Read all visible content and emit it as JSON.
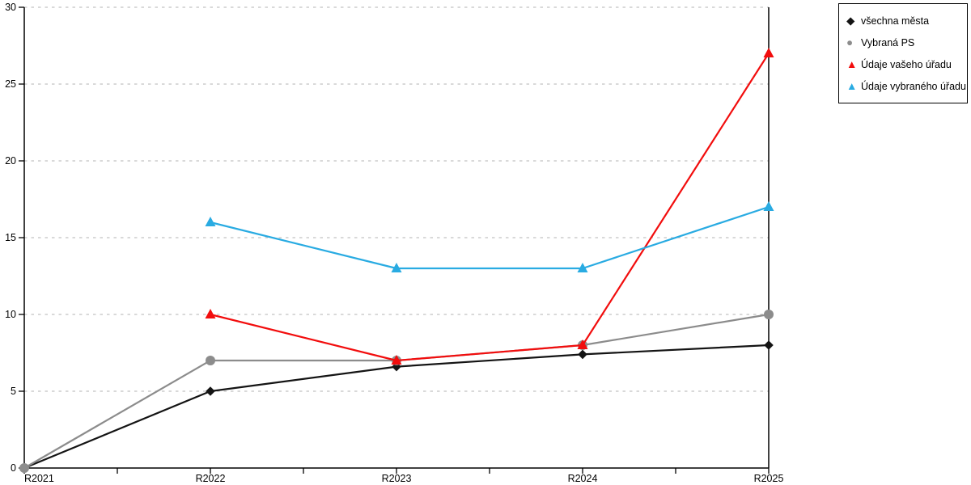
{
  "chart_data": {
    "type": "line",
    "title": "",
    "xlabel": "",
    "ylabel": "",
    "categories": [
      "R2021",
      "R2022",
      "R2023",
      "R2024",
      "R2025"
    ],
    "series": [
      {
        "name": "všechna města",
        "color": "#141414",
        "marker": "diamond",
        "values": [
          0,
          5,
          6.6,
          7.4,
          8
        ]
      },
      {
        "name": "Vybraná PS",
        "color": "#8c8c8c",
        "marker": "circle",
        "values": [
          0,
          7,
          7,
          8,
          10
        ]
      },
      {
        "name": "Údaje vašeho úřadu",
        "color": "#f20d0d",
        "marker": "triangle",
        "values": [
          null,
          10,
          7,
          8,
          27
        ]
      },
      {
        "name": "Údaje vybraného úřadu",
        "color": "#29abe2",
        "marker": "triangle",
        "values": [
          null,
          16,
          13,
          13,
          17
        ]
      }
    ],
    "ylim": [
      0,
      30
    ],
    "y_ticks": [
      0,
      5,
      10,
      15,
      20,
      25,
      30
    ],
    "grid": true,
    "grid_style": "dashed",
    "legend_position": "top-right"
  },
  "colors": {
    "background": "#ffffff",
    "axis": "#000000",
    "gridline": "#c2c2c2",
    "tick_label": "#000000",
    "legend_border": "#000000",
    "legend_background": "#ffffff"
  }
}
